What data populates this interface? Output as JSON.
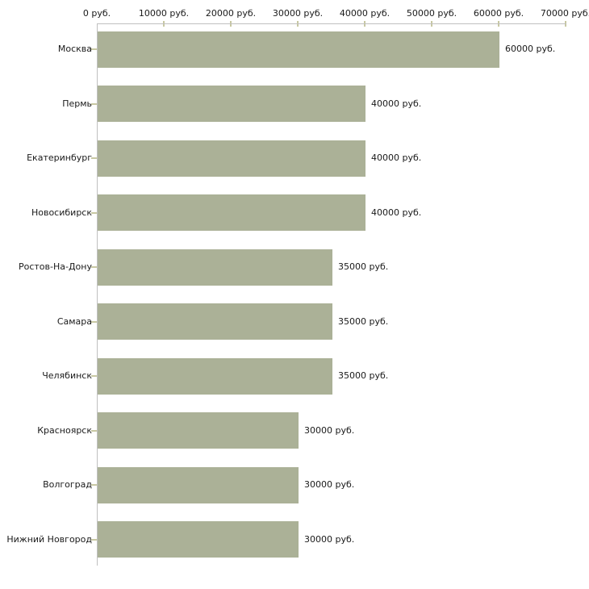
{
  "chart_data": {
    "type": "bar",
    "orientation": "horizontal",
    "categories": [
      "Москва",
      "Пермь",
      "Екатеринбург",
      "Новосибирск",
      "Ростов-На-Дону",
      "Самара",
      "Челябинск",
      "Красноярск",
      "Волгоград",
      "Нижний Новгород"
    ],
    "values": [
      60000,
      40000,
      40000,
      40000,
      35000,
      35000,
      35000,
      30000,
      30000,
      30000
    ],
    "value_labels": [
      "60000 руб.",
      "40000 руб.",
      "40000 руб.",
      "40000 руб.",
      "35000 руб.",
      "35000 руб.",
      "35000 руб.",
      "30000 руб.",
      "30000 руб.",
      "30000 руб."
    ],
    "x_tick_values": [
      0,
      10000,
      20000,
      30000,
      40000,
      50000,
      60000,
      70000
    ],
    "x_tick_labels": [
      "0 руб.",
      "10000 руб.",
      "20000 руб.",
      "30000 руб.",
      "40000 руб.",
      "50000 руб.",
      "60000 руб.",
      "70000 руб."
    ],
    "xlim": [
      0,
      70000
    ],
    "grid": false,
    "legend": false,
    "colors": {
      "bar": "#abb197",
      "axis_line": "#c0c0c0",
      "tick_mark": "#c8c8a2",
      "text": "#1a1a1a",
      "background": "#ffffff"
    }
  }
}
